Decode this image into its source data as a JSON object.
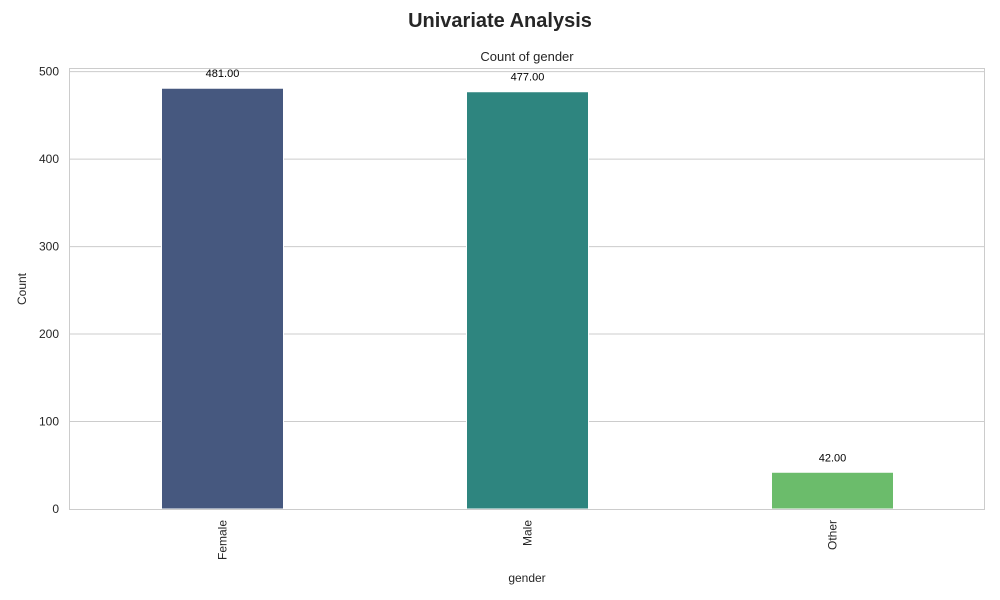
{
  "suptitle": "Univariate Analysis",
  "chart_data": {
    "type": "bar",
    "title": "Count of gender",
    "xlabel": "gender",
    "ylabel": "Count",
    "categories": [
      "Female",
      "Male",
      "Other"
    ],
    "values": [
      481,
      477,
      42
    ],
    "value_labels": [
      "481.00",
      "477.00",
      "42.00"
    ],
    "colors": [
      "#46587f",
      "#2e857f",
      "#6bbc6b"
    ],
    "ylim": [
      0,
      503
    ],
    "yticks": [
      0,
      100,
      200,
      300,
      400,
      500
    ],
    "ytick_labels": [
      "0",
      "100",
      "200",
      "300",
      "400",
      "500"
    ],
    "grid": true,
    "legend": "none"
  }
}
